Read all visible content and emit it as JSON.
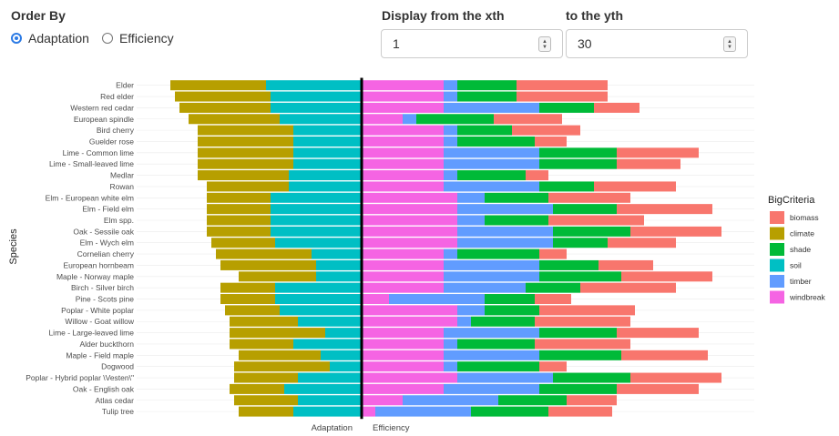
{
  "controls": {
    "order_by_label": "Order By",
    "order_options": [
      "Adaptation",
      "Efficiency"
    ],
    "order_selected": "Adaptation",
    "from_label": "Display from the xth",
    "from_value": "1",
    "to_label": "to the yth",
    "to_value": "30"
  },
  "chart_data": {
    "type": "bar",
    "orientation": "horizontal",
    "stacked": "diverging",
    "ylabel": "Species",
    "xlabels": [
      "Adaptation",
      "Efficiency"
    ],
    "legend": {
      "title": "BigCriteria",
      "placement": "right",
      "entries": [
        "biomass",
        "climate",
        "shade",
        "soil",
        "timber",
        "windbreak"
      ]
    },
    "colors": {
      "biomass": "#F8766D",
      "climate": "#B79F00",
      "shade": "#00BA38",
      "soil": "#00BFC4",
      "timber": "#619CFF",
      "windbreak": "#F564E3"
    },
    "categories": [
      "Elder",
      "Red elder",
      "Western red cedar",
      "European spindle",
      "Bird cherry",
      "Guelder rose",
      "Lime - Common lime",
      "Lime - Small-leaved lime",
      "Medlar",
      "Rowan",
      "Elm - European white elm",
      "Elm - Field elm",
      "Elm spp.",
      "Oak - Sessile oak",
      "Elm - Wych elm",
      "Cornelian cherry",
      "European hornbeam",
      "Maple - Norway maple",
      "Birch - Silver birch",
      "Pine - Scots pine",
      "Poplar - White poplar",
      "Willow - Goat willow",
      "Lime - Large-leaved lime",
      "Alder buckthorn",
      "Maple - Field maple",
      "Dogwood",
      "Poplar - Hybrid poplar \\Vesten\\\"",
      "Oak - English oak",
      "Atlas cedar",
      "Tulip tree"
    ],
    "adaptation": {
      "climate": [
        21,
        21,
        20,
        20,
        21,
        21,
        21,
        21,
        20,
        18,
        14,
        14,
        14,
        14,
        14,
        21,
        21,
        17,
        12,
        12,
        12,
        15,
        21,
        14,
        18,
        21,
        14,
        12,
        14,
        12
      ],
      "soil": [
        21,
        20,
        20,
        18,
        15,
        15,
        15,
        15,
        16,
        16,
        20,
        20,
        20,
        20,
        19,
        11,
        10,
        10,
        19,
        19,
        18,
        14,
        8,
        15,
        9,
        7,
        14,
        17,
        14,
        15
      ]
    },
    "efficiency": {
      "windbreak": [
        18,
        18,
        18,
        9,
        18,
        18,
        18,
        18,
        18,
        18,
        21,
        21,
        21,
        21,
        21,
        18,
        18,
        18,
        18,
        6,
        21,
        21,
        18,
        18,
        18,
        18,
        21,
        18,
        9,
        3
      ],
      "timber": [
        3,
        3,
        21,
        3,
        3,
        3,
        21,
        21,
        3,
        21,
        6,
        21,
        6,
        21,
        21,
        3,
        21,
        21,
        18,
        21,
        6,
        3,
        21,
        3,
        21,
        3,
        21,
        21,
        21,
        21
      ],
      "shade": [
        13,
        13,
        12,
        17,
        12,
        17,
        17,
        17,
        15,
        12,
        14,
        14,
        14,
        17,
        12,
        18,
        13,
        18,
        12,
        11,
        12,
        14,
        17,
        17,
        18,
        18,
        17,
        17,
        15,
        17
      ],
      "biomass": [
        20,
        20,
        10,
        15,
        15,
        7,
        18,
        14,
        5,
        18,
        18,
        21,
        21,
        20,
        15,
        6,
        12,
        20,
        21,
        8,
        21,
        21,
        18,
        21,
        19,
        6,
        20,
        18,
        11,
        14
      ]
    },
    "center": 0,
    "xlim": [
      -43,
      86
    ]
  }
}
